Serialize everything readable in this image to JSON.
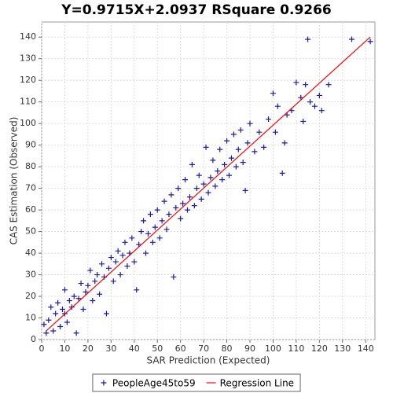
{
  "chart_data": {
    "type": "scatter",
    "title": "Y=0.9715X+2.0937    RSquare 0.9266",
    "x_label": "SAR Prediction (Expected)",
    "y_label": "CAS Estimation (Observed)",
    "xlim": [
      0,
      144
    ],
    "ylim": [
      0,
      147
    ],
    "xticks": [
      0,
      10,
      20,
      30,
      40,
      50,
      60,
      70,
      80,
      90,
      100,
      110,
      120,
      130,
      140
    ],
    "yticks": [
      0,
      10,
      20,
      30,
      40,
      50,
      60,
      70,
      80,
      90,
      100,
      110,
      120,
      130,
      140
    ],
    "grid": true,
    "legend": "bottom",
    "series": [
      {
        "name": "PeopleAge45to59",
        "color": "#1a1aa6",
        "marker": "+",
        "x": [
          1,
          2,
          3,
          4,
          5,
          6,
          7,
          8,
          9,
          10,
          10,
          11,
          12,
          13,
          14,
          15,
          16,
          17,
          18,
          19,
          20,
          21,
          22,
          23,
          24,
          25,
          26,
          27,
          28,
          29,
          30,
          31,
          32,
          33,
          34,
          35,
          36,
          37,
          38,
          39,
          40,
          41,
          42,
          43,
          44,
          45,
          46,
          47,
          48,
          49,
          50,
          51,
          52,
          53,
          54,
          55,
          56,
          57,
          58,
          59,
          60,
          61,
          62,
          63,
          64,
          65,
          66,
          67,
          68,
          69,
          70,
          71,
          72,
          73,
          74,
          75,
          76,
          77,
          78,
          79,
          80,
          81,
          82,
          83,
          84,
          85,
          86,
          87,
          88,
          89,
          90,
          92,
          94,
          96,
          98,
          100,
          101,
          102,
          104,
          105,
          106,
          108,
          110,
          112,
          113,
          114,
          115,
          116,
          118,
          120,
          121,
          124,
          134,
          142
        ],
        "values": [
          7,
          3,
          9,
          15,
          4,
          12,
          17,
          6,
          14,
          12,
          23,
          8,
          18,
          15,
          20,
          3,
          19,
          26,
          14,
          22,
          25,
          32,
          18,
          27,
          30,
          21,
          35,
          29,
          12,
          33,
          38,
          27,
          36,
          41,
          30,
          39,
          45,
          34,
          40,
          47,
          36,
          23,
          44,
          50,
          55,
          40,
          49,
          58,
          45,
          52,
          60,
          47,
          55,
          64,
          51,
          58,
          67,
          29,
          61,
          70,
          56,
          63,
          74,
          60,
          66,
          81,
          62,
          70,
          76,
          65,
          72,
          89,
          68,
          75,
          83,
          71,
          78,
          88,
          74,
          81,
          92,
          76,
          84,
          95,
          80,
          88,
          97,
          82,
          69,
          91,
          100,
          87,
          96,
          89,
          102,
          114,
          96,
          108,
          77,
          91,
          104,
          106,
          119,
          112,
          101,
          118,
          139,
          110,
          108,
          113,
          106,
          118,
          139,
          138
        ]
      },
      {
        "name": "Regression Line",
        "color": "#ff0000",
        "type": "line",
        "x": [
          2,
          142
        ],
        "values": [
          4.04,
          140.05
        ]
      }
    ]
  }
}
